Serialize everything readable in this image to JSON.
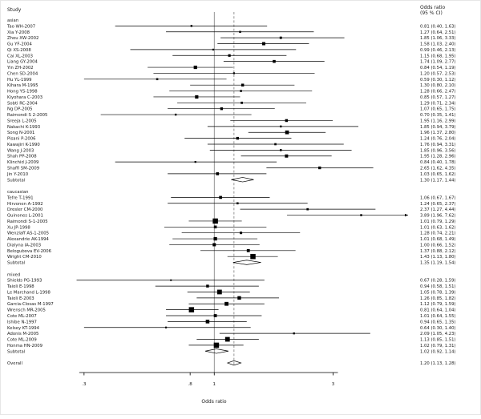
{
  "header": {
    "study_col": "Study",
    "effect_col_line1": "Odds ratio",
    "effect_col_line2": "(95 % CI)"
  },
  "axis": {
    "title": "Odds ratio",
    "min": 0.22,
    "max": 6.0,
    "ticks": [
      {
        "value": 0.3,
        "label": ".3"
      },
      {
        "value": 0.8,
        "label": ".8"
      },
      {
        "value": 1,
        "label": "1"
      },
      {
        "value": 3,
        "label": "3"
      }
    ]
  },
  "colors": {
    "marker": "#000000",
    "ci_line": "#000000",
    "ref_line": "#7a7a7a",
    "text": "#1a1a1a"
  },
  "chart_data": {
    "type": "forest",
    "xlabel": "Odds ratio",
    "effect_label": "Odds ratio (95 % CI)",
    "null_value": 1,
    "groups": [
      {
        "label": "asian",
        "studies": [
          {
            "name": "Tao WH-2007",
            "or": 0.81,
            "lo": 0.4,
            "hi": 1.63
          },
          {
            "name": "Xia Y-2008",
            "or": 1.27,
            "lo": 0.64,
            "hi": 2.51
          },
          {
            "name": "Zhou XW-2002",
            "or": 1.85,
            "lo": 1.06,
            "hi": 3.33
          },
          {
            "name": "Gu YF-2004",
            "or": 1.58,
            "lo": 1.03,
            "hi": 2.4
          },
          {
            "name": "Qi XS-2008",
            "or": 0.99,
            "lo": 0.46,
            "hi": 2.13
          },
          {
            "name": "Cai XL-2003",
            "or": 1.15,
            "lo": 0.68,
            "hi": 1.95
          },
          {
            "name": "Liang GY-2004",
            "or": 1.74,
            "lo": 1.09,
            "hi": 2.77
          },
          {
            "name": "Yin ZH-2002",
            "or": 0.84,
            "lo": 0.54,
            "hi": 1.19
          },
          {
            "name": "Chen SD-2004",
            "or": 1.2,
            "lo": 0.57,
            "hi": 2.53
          },
          {
            "name": "Hu YL-1999",
            "or": 0.59,
            "lo": 0.3,
            "hi": 1.12
          },
          {
            "name": "Kihara M-1995",
            "or": 1.3,
            "lo": 0.8,
            "hi": 2.1
          },
          {
            "name": "Hong YS-1998",
            "or": 1.28,
            "lo": 0.66,
            "hi": 2.47
          },
          {
            "name": "Kiyohara C-2003",
            "or": 0.85,
            "lo": 0.57,
            "hi": 1.27
          },
          {
            "name": "Sobti RC-2004",
            "or": 1.29,
            "lo": 0.71,
            "hi": 2.34
          },
          {
            "name": "Ng DP-2005",
            "or": 1.07,
            "lo": 0.65,
            "hi": 1.75
          },
          {
            "name": "Raimondi S 2-2005",
            "or": 0.7,
            "lo": 0.35,
            "hi": 1.41
          },
          {
            "name": "Sreeja L-2005",
            "or": 1.95,
            "lo": 1.16,
            "hi": 2.99
          },
          {
            "name": "Nakachi K-1993",
            "or": 1.85,
            "lo": 0.94,
            "hi": 3.79
          },
          {
            "name": "Song N-2001",
            "or": 1.96,
            "lo": 1.37,
            "hi": 2.8
          },
          {
            "name": "Pisani P-2006",
            "or": 1.24,
            "lo": 0.76,
            "hi": 2.04
          },
          {
            "name": "Kawajiri K-1990",
            "or": 1.76,
            "lo": 0.94,
            "hi": 3.31
          },
          {
            "name": "Wang J-2003",
            "or": 1.85,
            "lo": 0.96,
            "hi": 3.56
          },
          {
            "name": "Shah PP-2008",
            "or": 1.95,
            "lo": 1.28,
            "hi": 2.96
          },
          {
            "name": "Klinchid J-2009",
            "or": 0.84,
            "lo": 0.4,
            "hi": 1.78
          },
          {
            "name": "Shaffi SM-2009",
            "or": 2.65,
            "lo": 1.62,
            "hi": 4.35
          },
          {
            "name": "Jin Y-2010",
            "or": 1.03,
            "lo": 0.65,
            "hi": 1.62
          }
        ],
        "subtotal": {
          "label": "Subtotal",
          "or": 1.3,
          "lo": 1.17,
          "hi": 1.44
        }
      },
      {
        "label": "caucasian",
        "studies": [
          {
            "name": "Tefre T-1991",
            "or": 1.06,
            "lo": 0.67,
            "hi": 1.67
          },
          {
            "name": "Hirvonen A-1992",
            "or": 1.24,
            "lo": 0.65,
            "hi": 2.37
          },
          {
            "name": "Dresler CM-2000",
            "or": 2.37,
            "lo": 1.27,
            "hi": 4.44
          },
          {
            "name": "Quinones L-2001",
            "or": 3.89,
            "lo": 1.96,
            "hi": 7.62
          },
          {
            "name": "Raimondi S-1-2005",
            "or": 1.01,
            "lo": 0.79,
            "hi": 1.29
          },
          {
            "name": "Xu JP-1998",
            "or": 1.01,
            "lo": 0.63,
            "hi": 1.62
          },
          {
            "name": "Wenzlaff AS-1-2005",
            "or": 1.28,
            "lo": 0.74,
            "hi": 2.21
          },
          {
            "name": "Alexandrie AK-1994",
            "or": 1.01,
            "lo": 0.68,
            "hi": 1.49
          },
          {
            "name": "Dialyna IA-2003",
            "or": 1.0,
            "lo": 0.66,
            "hi": 1.52
          },
          {
            "name": "Belogubova EV-2006",
            "or": 1.37,
            "lo": 0.88,
            "hi": 2.12
          },
          {
            "name": "Wright CM-2010",
            "or": 1.43,
            "lo": 1.13,
            "hi": 1.8
          }
        ],
        "subtotal": {
          "label": "Subtotal",
          "or": 1.35,
          "lo": 1.19,
          "hi": 1.54
        }
      },
      {
        "label": "mixed",
        "studies": [
          {
            "name": "Shields PG-1993",
            "or": 0.67,
            "lo": 0.28,
            "hi": 1.59
          },
          {
            "name": "Taioli E-1998",
            "or": 0.94,
            "lo": 0.58,
            "hi": 1.51
          },
          {
            "name": "Le Marchand L-1998",
            "or": 1.05,
            "lo": 0.78,
            "hi": 1.39
          },
          {
            "name": "Taioli E-2003",
            "or": 1.26,
            "lo": 0.85,
            "hi": 1.82
          },
          {
            "name": "Garcia-Closas M-1997",
            "or": 1.12,
            "lo": 0.79,
            "hi": 1.59
          },
          {
            "name": "Wrensch MR-2005",
            "or": 0.81,
            "lo": 0.64,
            "hi": 1.04
          },
          {
            "name": "Cote ML-2007",
            "or": 1.01,
            "lo": 0.64,
            "hi": 1.55
          },
          {
            "name": "Ishibe N-1997",
            "or": 0.94,
            "lo": 0.65,
            "hi": 1.35
          },
          {
            "name": "Kelsey KT-1994",
            "or": 0.64,
            "lo": 0.3,
            "hi": 1.4
          },
          {
            "name": "Adonis M-2005",
            "or": 2.09,
            "lo": 1.05,
            "hi": 4.23
          },
          {
            "name": "Cote ML-2009",
            "or": 1.13,
            "lo": 0.85,
            "hi": 1.51
          },
          {
            "name": "Honma HN-2009",
            "or": 1.02,
            "lo": 0.79,
            "hi": 1.31
          }
        ],
        "subtotal": {
          "label": "Subtotal",
          "or": 1.02,
          "lo": 0.92,
          "hi": 1.14
        }
      }
    ],
    "overall": {
      "label": "Overall",
      "or": 1.2,
      "lo": 1.13,
      "hi": 1.28
    }
  }
}
